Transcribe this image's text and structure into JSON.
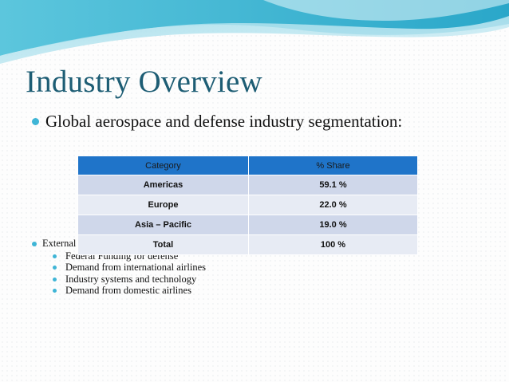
{
  "slide": {
    "title": "Industry Overview",
    "bullet_main": "Global aerospace and defense industry segmentation:",
    "bullet_secondary": "External factors",
    "sub_bullets": [
      "Federal Funding for defense",
      "Demand from international airlines",
      "Industry systems and technology",
      "Demand from domestic airlines"
    ]
  },
  "table": {
    "headers": [
      "Category",
      "% Share"
    ],
    "rows": [
      [
        "Americas",
        "59.1 %"
      ],
      [
        "Europe",
        "22.0 %"
      ],
      [
        "Asia – Pacific",
        "19.0 %"
      ],
      [
        "Total",
        "100 %"
      ]
    ]
  },
  "colors": {
    "title": "#1d5d74",
    "bullet": "#3fb5d6",
    "table_header": "#1f74c9",
    "row_dark": "#cfd7ea",
    "row_light": "#e7ebf4"
  }
}
